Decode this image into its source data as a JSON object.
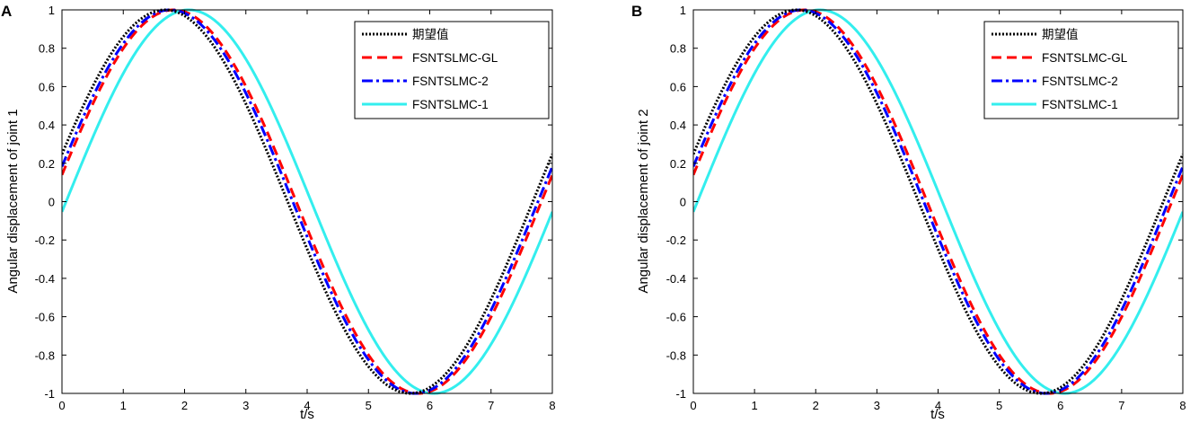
{
  "chart_data": [
    {
      "panel": "A",
      "type": "line",
      "xlabel": "t/s",
      "ylabel": "Angular displacement of joint 1",
      "xlim": [
        0,
        8
      ],
      "ylim": [
        -1,
        1
      ],
      "xticks": [
        0,
        1,
        2,
        3,
        4,
        5,
        6,
        7,
        8
      ],
      "yticks": [
        1,
        0.8,
        0.6,
        0.4,
        0.2,
        0,
        -0.2,
        -0.4,
        -0.6,
        -0.8,
        -1
      ],
      "xtick_labels": [
        "0",
        "1",
        "2",
        "3",
        "4",
        "5",
        "6",
        "7",
        "8"
      ],
      "ytick_labels": [
        "1",
        "0.8",
        "0.6",
        "0.4",
        "0.2",
        "0",
        "-0.2",
        "-0.4",
        "-0.6",
        "-0.8",
        "-1"
      ],
      "grid": false,
      "legend_position": "top-right",
      "series": [
        {
          "name": "期望值",
          "style": "dotted",
          "color": "#000000",
          "phase_lag": 0.0,
          "x_range": [
            0,
            8
          ]
        },
        {
          "name": "FSNTSLMC-GL",
          "style": "dashed",
          "color": "#ff0000",
          "phase_lag": 0.2,
          "x_range": [
            0,
            8
          ]
        },
        {
          "name": "FSNTSLMC-2",
          "style": "dashdot",
          "color": "#0000ff",
          "phase_lag": 0.12,
          "x_range": [
            0,
            8
          ]
        },
        {
          "name": "FSNTSLMC-1",
          "style": "solid",
          "color": "#33eeee",
          "phase_lag": 0.46,
          "x_range": [
            0,
            8
          ]
        }
      ],
      "period": 8,
      "amplitude": 1
    },
    {
      "panel": "B",
      "type": "line",
      "xlabel": "t/s",
      "ylabel": "Angular displacement of joint 2",
      "xlim": [
        0,
        8
      ],
      "ylim": [
        -1,
        1
      ],
      "xticks": [
        0,
        1,
        2,
        3,
        4,
        5,
        6,
        7,
        8
      ],
      "yticks": [
        1,
        0.8,
        0.6,
        0.4,
        0.2,
        0,
        -0.2,
        -0.4,
        -0.6,
        -0.8,
        -1
      ],
      "xtick_labels": [
        "0",
        "1",
        "2",
        "3",
        "4",
        "5",
        "6",
        "7",
        "8"
      ],
      "ytick_labels": [
        "1",
        "0.8",
        "0.6",
        "0.4",
        "0.2",
        "0",
        "-0.2",
        "-0.4",
        "-0.6",
        "-0.8",
        "-1"
      ],
      "grid": false,
      "legend_position": "top-right",
      "series": [
        {
          "name": "期望值",
          "style": "dotted",
          "color": "#000000",
          "phase_lag": 0.0,
          "x_range": [
            0,
            8
          ]
        },
        {
          "name": "FSNTSLMC-GL",
          "style": "dashed",
          "color": "#ff0000",
          "phase_lag": 0.2,
          "x_range": [
            0,
            8
          ]
        },
        {
          "name": "FSNTSLMC-2",
          "style": "dashdot",
          "color": "#0000ff",
          "phase_lag": 0.12,
          "x_range": [
            0,
            8
          ]
        },
        {
          "name": "FSNTSLMC-1",
          "style": "solid",
          "color": "#33eeee",
          "phase_lag": 0.46,
          "x_range": [
            0,
            8
          ]
        }
      ],
      "period": 8,
      "amplitude": 1
    }
  ]
}
